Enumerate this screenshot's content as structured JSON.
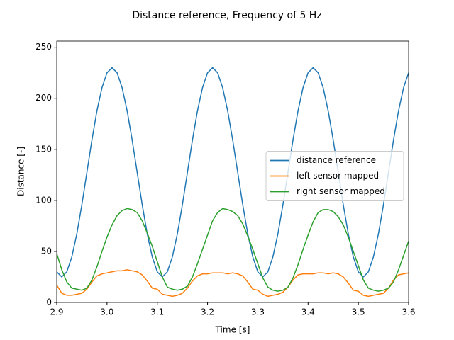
{
  "chart_data": {
    "type": "line",
    "title": "Distance reference, Frequency of 5 Hz",
    "x_label": "Time [s]",
    "y_label": "Distance [-]",
    "x": [
      2.9,
      2.91,
      2.92,
      2.93,
      2.94,
      2.95,
      2.96,
      2.97,
      2.98,
      2.99,
      3.0,
      3.01,
      3.02,
      3.03,
      3.04,
      3.05,
      3.06,
      3.07,
      3.08,
      3.09,
      3.1,
      3.11,
      3.12,
      3.13,
      3.14,
      3.15,
      3.16,
      3.17,
      3.18,
      3.19,
      3.2,
      3.21,
      3.22,
      3.23,
      3.24,
      3.25,
      3.26,
      3.27,
      3.28,
      3.29,
      3.3,
      3.31,
      3.32,
      3.33,
      3.34,
      3.35,
      3.36,
      3.37,
      3.38,
      3.39,
      3.4,
      3.41,
      3.42,
      3.43,
      3.44,
      3.45,
      3.46,
      3.47,
      3.48,
      3.49,
      3.5,
      3.51,
      3.52,
      3.53,
      3.54,
      3.55,
      3.56,
      3.57,
      3.58,
      3.59,
      3.6
    ],
    "series": [
      {
        "name": "distance reference",
        "color": "#1f77b4",
        "values": [
          30,
          25,
          30,
          44.6,
          67.2,
          95.8,
          127.5,
          159.2,
          187.8,
          210.4,
          225,
          230,
          225,
          210.4,
          187.8,
          159.2,
          127.5,
          95.8,
          67.2,
          44.6,
          30,
          25,
          30,
          44.6,
          67.2,
          95.8,
          127.5,
          159.2,
          187.8,
          210.4,
          225,
          230,
          225,
          210.4,
          187.8,
          159.2,
          127.5,
          95.8,
          67.2,
          44.6,
          30,
          25,
          30,
          44.6,
          67.2,
          95.8,
          127.5,
          159.2,
          187.8,
          210.4,
          225,
          230,
          225,
          210.4,
          187.8,
          159.2,
          127.5,
          95.8,
          67.2,
          44.6,
          30,
          25,
          30,
          44.6,
          67.2,
          95.8,
          127.5,
          159.2,
          187.8,
          210.4,
          225
        ]
      },
      {
        "name": "left sensor mapped",
        "color": "#ff7f0e",
        "values": [
          17,
          9,
          7,
          7,
          8,
          9,
          13,
          20,
          26,
          28,
          29,
          30,
          31,
          31,
          32,
          31,
          30,
          27,
          21,
          14,
          13,
          8,
          7,
          6,
          7,
          9,
          14,
          21,
          26,
          28,
          28,
          29,
          29,
          29,
          28,
          29,
          28,
          26,
          20,
          13,
          12,
          8,
          6,
          7,
          8,
          10,
          15,
          22,
          27,
          28,
          28,
          28,
          29,
          29,
          28,
          29,
          28,
          25,
          19,
          12,
          11,
          7,
          6,
          7,
          8,
          9,
          14,
          22,
          27,
          28,
          29
        ]
      },
      {
        "name": "right sensor mapped",
        "color": "#2ca02c",
        "values": [
          48,
          32,
          20,
          14,
          13,
          12,
          14,
          22,
          35,
          50,
          64,
          76,
          85,
          90,
          92,
          91,
          88,
          80,
          68,
          55,
          40,
          25,
          15,
          13,
          12,
          13,
          16,
          25,
          38,
          52,
          66,
          80,
          88,
          92,
          91,
          89,
          85,
          77,
          65,
          52,
          38,
          24,
          15,
          12,
          11,
          12,
          15,
          24,
          37,
          52,
          66,
          79,
          88,
          91,
          91,
          89,
          84,
          76,
          64,
          50,
          36,
          22,
          14,
          12,
          11,
          12,
          14,
          20,
          32,
          46,
          60
        ]
      }
    ],
    "xlim": [
      2.9,
      3.6
    ],
    "xticks": [
      2.9,
      {
        "value": 3,
        "label": "3.0"
      },
      3.1,
      3.2,
      3.3,
      3.4,
      3.5,
      3.6
    ],
    "ylim": [
      0,
      256
    ],
    "yticks": [
      0,
      50,
      100,
      150,
      200,
      250
    ],
    "legend": "right"
  }
}
